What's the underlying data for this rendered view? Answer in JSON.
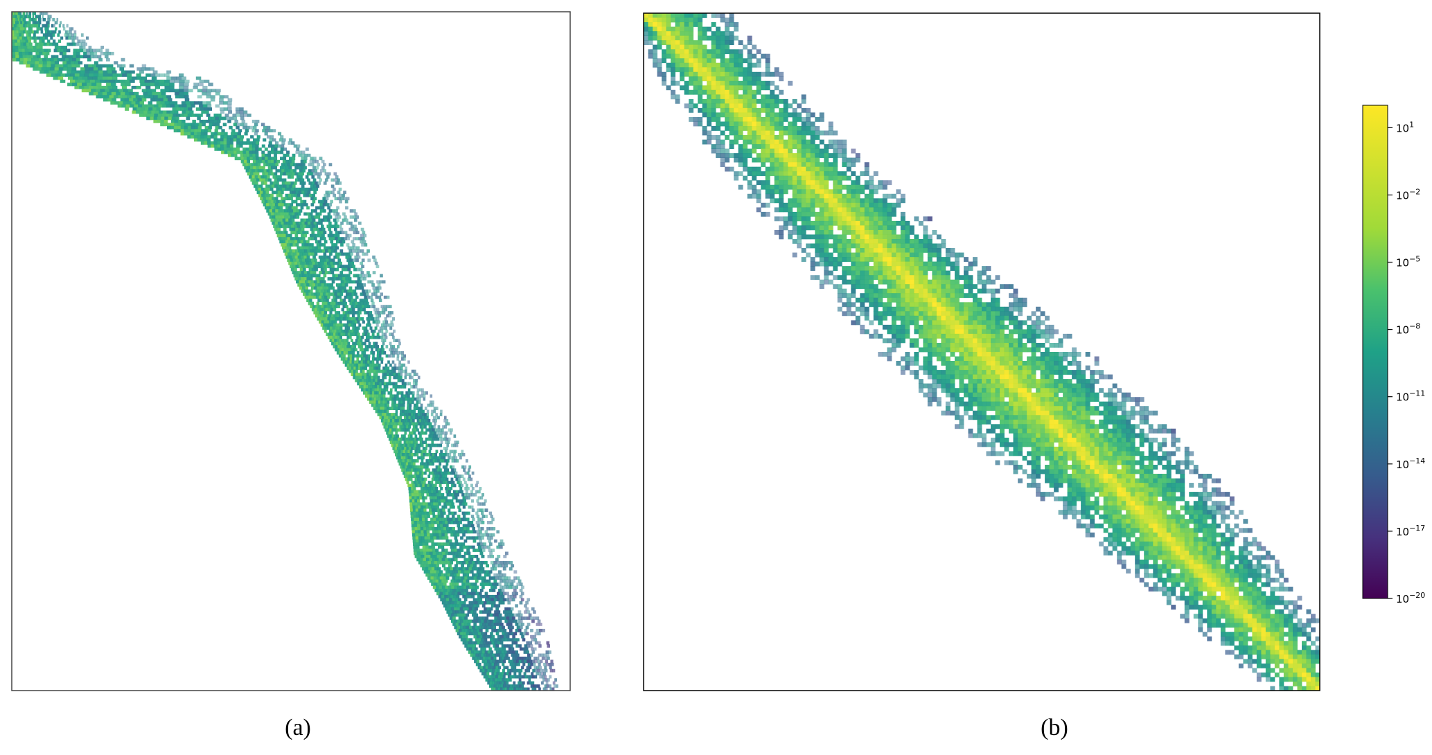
{
  "captions": {
    "a": "(a)",
    "b": "(b)"
  },
  "chart_data": [
    {
      "type": "heatmap",
      "panel": "a",
      "title": "",
      "xlabel": "",
      "ylabel": "",
      "ticks": false,
      "colorscale": "viridis",
      "structure": "staircase banded sparse matrix, nonzeros along a descending band",
      "band_profile": {
        "row_fraction": [
          0.0,
          0.07,
          0.1,
          0.16,
          0.22,
          0.3,
          0.4,
          0.5,
          0.6,
          0.7,
          0.8,
          0.87,
          0.92,
          1.0
        ],
        "left_col_fraction": [
          0.0,
          0.0,
          0.08,
          0.25,
          0.41,
          0.46,
          0.51,
          0.58,
          0.66,
          0.71,
          0.72,
          0.77,
          0.8,
          0.86
        ],
        "right_col_fraction": [
          0.06,
          0.2,
          0.35,
          0.44,
          0.57,
          0.62,
          0.67,
          0.7,
          0.78,
          0.84,
          0.89,
          0.93,
          0.96,
          0.98
        ]
      }
    },
    {
      "type": "heatmap",
      "panel": "b",
      "title": "",
      "xlabel": "",
      "ylabel": "",
      "ticks": false,
      "colorscale": "viridis",
      "structure": "diagonal banded sparse matrix with strong main diagonal",
      "band_profile": {
        "row_fraction": [
          0.0,
          0.1,
          0.2,
          0.3,
          0.4,
          0.5,
          0.6,
          0.7,
          0.8,
          0.9,
          1.0
        ],
        "lower_halfwidth": [
          0.02,
          0.07,
          0.1,
          0.12,
          0.14,
          0.15,
          0.15,
          0.13,
          0.11,
          0.09,
          0.07
        ],
        "upper_halfwidth": [
          0.12,
          0.11,
          0.1,
          0.11,
          0.13,
          0.15,
          0.16,
          0.15,
          0.12,
          0.09,
          0.05
        ]
      },
      "colorbar": {
        "scale": "log",
        "range": [
          1e-20,
          100
        ],
        "tick_values": [
          1e-20,
          1e-17,
          1e-14,
          1e-11,
          1e-08,
          1e-05,
          0.01,
          10
        ],
        "tick_labels": [
          "10^{-20}",
          "10^{-17}",
          "10^{-14}",
          "10^{-11}",
          "10^{-8}",
          "10^{-5}",
          "10^{-2}",
          "10^{1}"
        ]
      }
    }
  ]
}
